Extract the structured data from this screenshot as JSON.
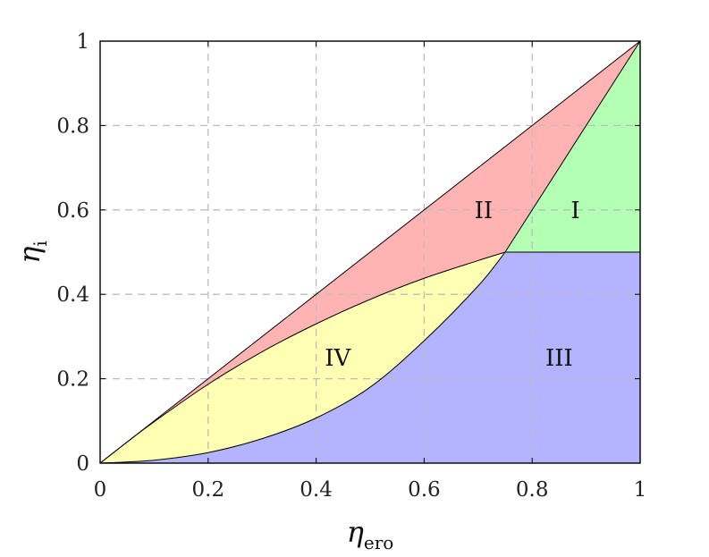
{
  "chart_data": {
    "type": "area",
    "xlabel": {
      "symbol": "η",
      "subscript": "ero"
    },
    "ylabel": {
      "symbol": "η",
      "subscript": "i"
    },
    "xlim": [
      0,
      1
    ],
    "ylim": [
      0,
      1
    ],
    "x_ticks": [
      "0",
      "0.2",
      "0.4",
      "0.6",
      "0.8",
      "1"
    ],
    "y_ticks": [
      "0",
      "0.2",
      "0.4",
      "0.6",
      "0.8",
      "1"
    ],
    "grid": true,
    "regions": [
      {
        "label": "I",
        "color": "#b3ffb3",
        "label_at": [
          0.88,
          0.6
        ]
      },
      {
        "label": "II",
        "color": "#ffb3b3",
        "label_at": [
          0.71,
          0.6
        ]
      },
      {
        "label": "III",
        "color": "#b3b3ff",
        "label_at": [
          0.85,
          0.25
        ]
      },
      {
        "label": "IV",
        "color": "#ffffb3",
        "label_at": [
          0.44,
          0.25
        ]
      }
    ],
    "boundaries": {
      "diagonal": [
        [
          0,
          0
        ],
        [
          1,
          1
        ]
      ],
      "upper_curve": [
        [
          0,
          0
        ],
        [
          0.05,
          0.05
        ],
        [
          0.1,
          0.098
        ],
        [
          0.2,
          0.187
        ],
        [
          0.3,
          0.264
        ],
        [
          0.4,
          0.33
        ],
        [
          0.5,
          0.388
        ],
        [
          0.6,
          0.438
        ],
        [
          0.7,
          0.48
        ],
        [
          0.75,
          0.5
        ]
      ],
      "lower_curve": [
        [
          0,
          0
        ],
        [
          0.1,
          0.007
        ],
        [
          0.2,
          0.025
        ],
        [
          0.3,
          0.058
        ],
        [
          0.4,
          0.107
        ],
        [
          0.5,
          0.18
        ],
        [
          0.6,
          0.29
        ],
        [
          0.7,
          0.42
        ],
        [
          0.75,
          0.5
        ]
      ],
      "steep_line": [
        [
          0.75,
          0.5
        ],
        [
          1,
          1
        ]
      ],
      "horizontal_line": [
        [
          0.75,
          0.5
        ],
        [
          1,
          0.5
        ]
      ]
    }
  }
}
